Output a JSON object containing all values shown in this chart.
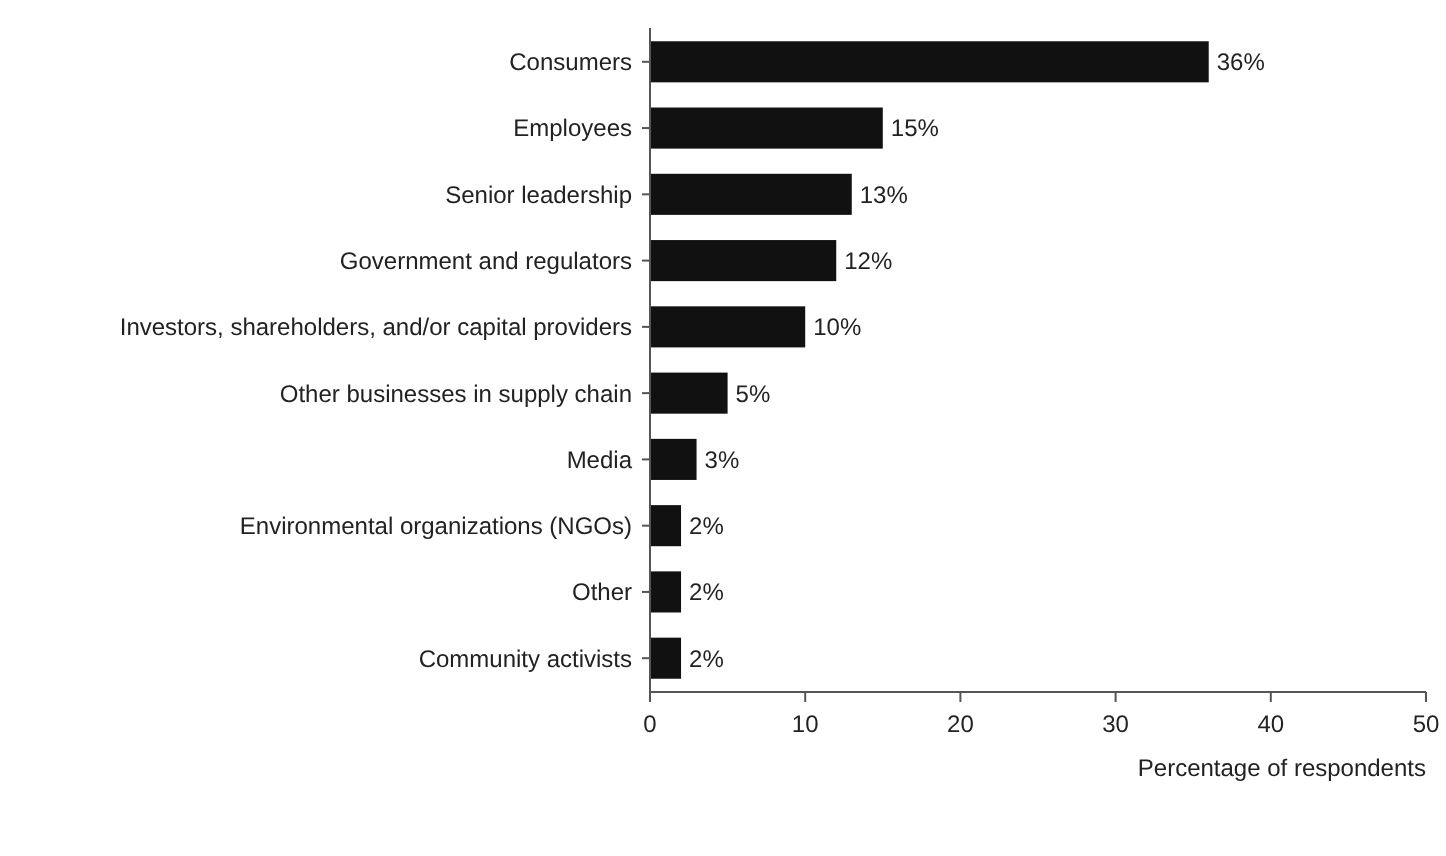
{
  "chart_data": {
    "type": "bar",
    "orientation": "horizontal",
    "xlabel": "Percentage of respondents",
    "categories": [
      "Consumers",
      "Employees",
      "Senior leadership",
      "Government and regulators",
      "Investors, shareholders, and/or capital providers",
      "Other businesses in supply chain",
      "Media",
      "Environmental organizations (NGOs)",
      "Other",
      "Community activists"
    ],
    "values": [
      36,
      15,
      13,
      12,
      10,
      5,
      3,
      2,
      2,
      2
    ],
    "color": "#111111",
    "value_labels": [
      "36%",
      "15%",
      "13%",
      "12%",
      "10%",
      "5%",
      "3%",
      "2%",
      "2%",
      "2%"
    ],
    "xlim": [
      0,
      50
    ],
    "xticks": [
      0,
      10,
      20,
      30,
      40,
      50
    ],
    "grid": false
  }
}
